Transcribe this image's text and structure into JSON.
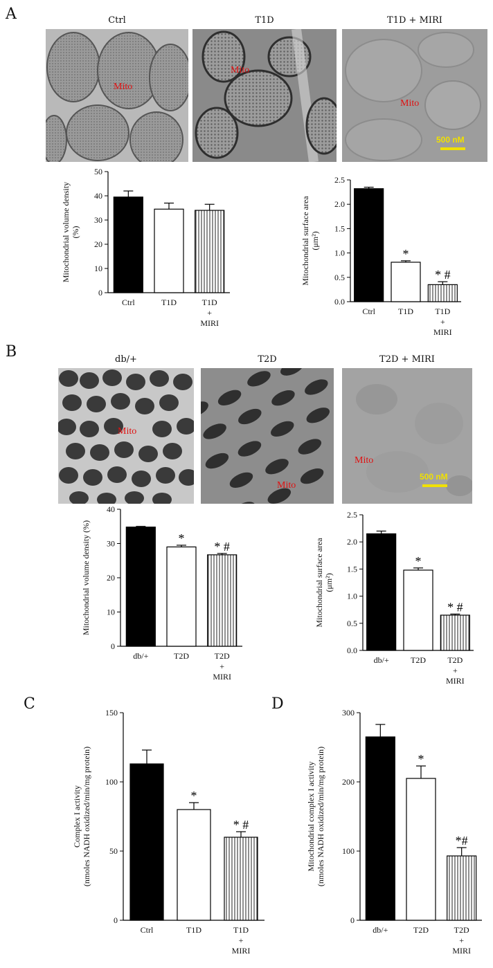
{
  "panels": {
    "A": "A",
    "B": "B",
    "C": "C",
    "D": "D"
  },
  "micrographs": {
    "A": {
      "titles": [
        "Ctrl",
        "T1D",
        "T1D + MIRI"
      ],
      "mito_label": "Mito",
      "scale_label": "500 nM"
    },
    "B": {
      "titles": [
        "db/+",
        "T2D",
        "T2D + MIRI"
      ],
      "mito_label": "Mito",
      "scale_label": "500 nM"
    }
  },
  "chart_data": [
    {
      "id": "A1",
      "type": "bar",
      "categories": [
        "Ctrl",
        "T1D",
        "T1D\n+\nMIRI"
      ],
      "values": [
        39.5,
        34.5,
        34.0
      ],
      "errors": [
        2.5,
        2.5,
        2.5
      ],
      "ylabel": "Mitochondrial volume density\n(%)",
      "ylim": [
        0,
        50
      ],
      "yticks": [
        0,
        10,
        20,
        30,
        40,
        50
      ],
      "annotations": [
        "",
        "",
        ""
      ]
    },
    {
      "id": "A2",
      "type": "bar",
      "categories": [
        "Ctrl",
        "T1D",
        "T1D\n+\nMIRI"
      ],
      "values": [
        2.32,
        0.81,
        0.35
      ],
      "errors": [
        0.03,
        0.03,
        0.06
      ],
      "ylabel": "Mitochondrial surface area\n(μm²)",
      "ylim": [
        0,
        2.5
      ],
      "yticks": [
        0.0,
        0.5,
        1.0,
        1.5,
        2.0,
        2.5
      ],
      "annotations": [
        "",
        "*",
        "* #"
      ]
    },
    {
      "id": "B1",
      "type": "bar",
      "categories": [
        "db/+",
        "T2D",
        "T2D\n+\nMIRI"
      ],
      "values": [
        34.8,
        29.0,
        26.7
      ],
      "errors": [
        0.2,
        0.5,
        0.4
      ],
      "ylabel": "Mitochondrial volume density (%)",
      "ylim": [
        0,
        40
      ],
      "yticks": [
        0,
        10,
        20,
        30,
        40
      ],
      "annotations": [
        "",
        "*",
        "* #"
      ]
    },
    {
      "id": "B2",
      "type": "bar",
      "categories": [
        "db/+",
        "T2D",
        "T2D\n+\nMIRI"
      ],
      "values": [
        2.15,
        1.48,
        0.65
      ],
      "errors": [
        0.05,
        0.04,
        0.02
      ],
      "ylabel": "Mitochondrial surface area\n(μm²)",
      "ylim": [
        0,
        2.5
      ],
      "yticks": [
        0.0,
        0.5,
        1.0,
        1.5,
        2.0,
        2.5
      ],
      "annotations": [
        "",
        "*",
        "* #"
      ]
    },
    {
      "id": "C",
      "type": "bar",
      "categories": [
        "Ctrl",
        "T1D",
        "T1D\n+\nMIRI"
      ],
      "values": [
        113,
        80,
        60
      ],
      "errors": [
        10,
        5,
        4
      ],
      "ylabel": "Complex I activity\n(nmoles NADH oxidized/min/mg protein)",
      "ylim": [
        0,
        150
      ],
      "yticks": [
        0,
        50,
        100,
        150
      ],
      "annotations": [
        "",
        "*",
        "* #"
      ]
    },
    {
      "id": "D",
      "type": "bar",
      "categories": [
        "db/+",
        "T2D",
        "T2D\n+\nMIRI"
      ],
      "values": [
        265,
        205,
        93
      ],
      "errors": [
        18,
        18,
        12
      ],
      "ylabel": "Mitochondrial complex I activity\n(nmoles NADH oxidized/min/mg protein)",
      "ylim": [
        0,
        300
      ],
      "yticks": [
        0,
        100,
        200,
        300
      ],
      "annotations": [
        "",
        "*",
        "*#"
      ]
    }
  ]
}
